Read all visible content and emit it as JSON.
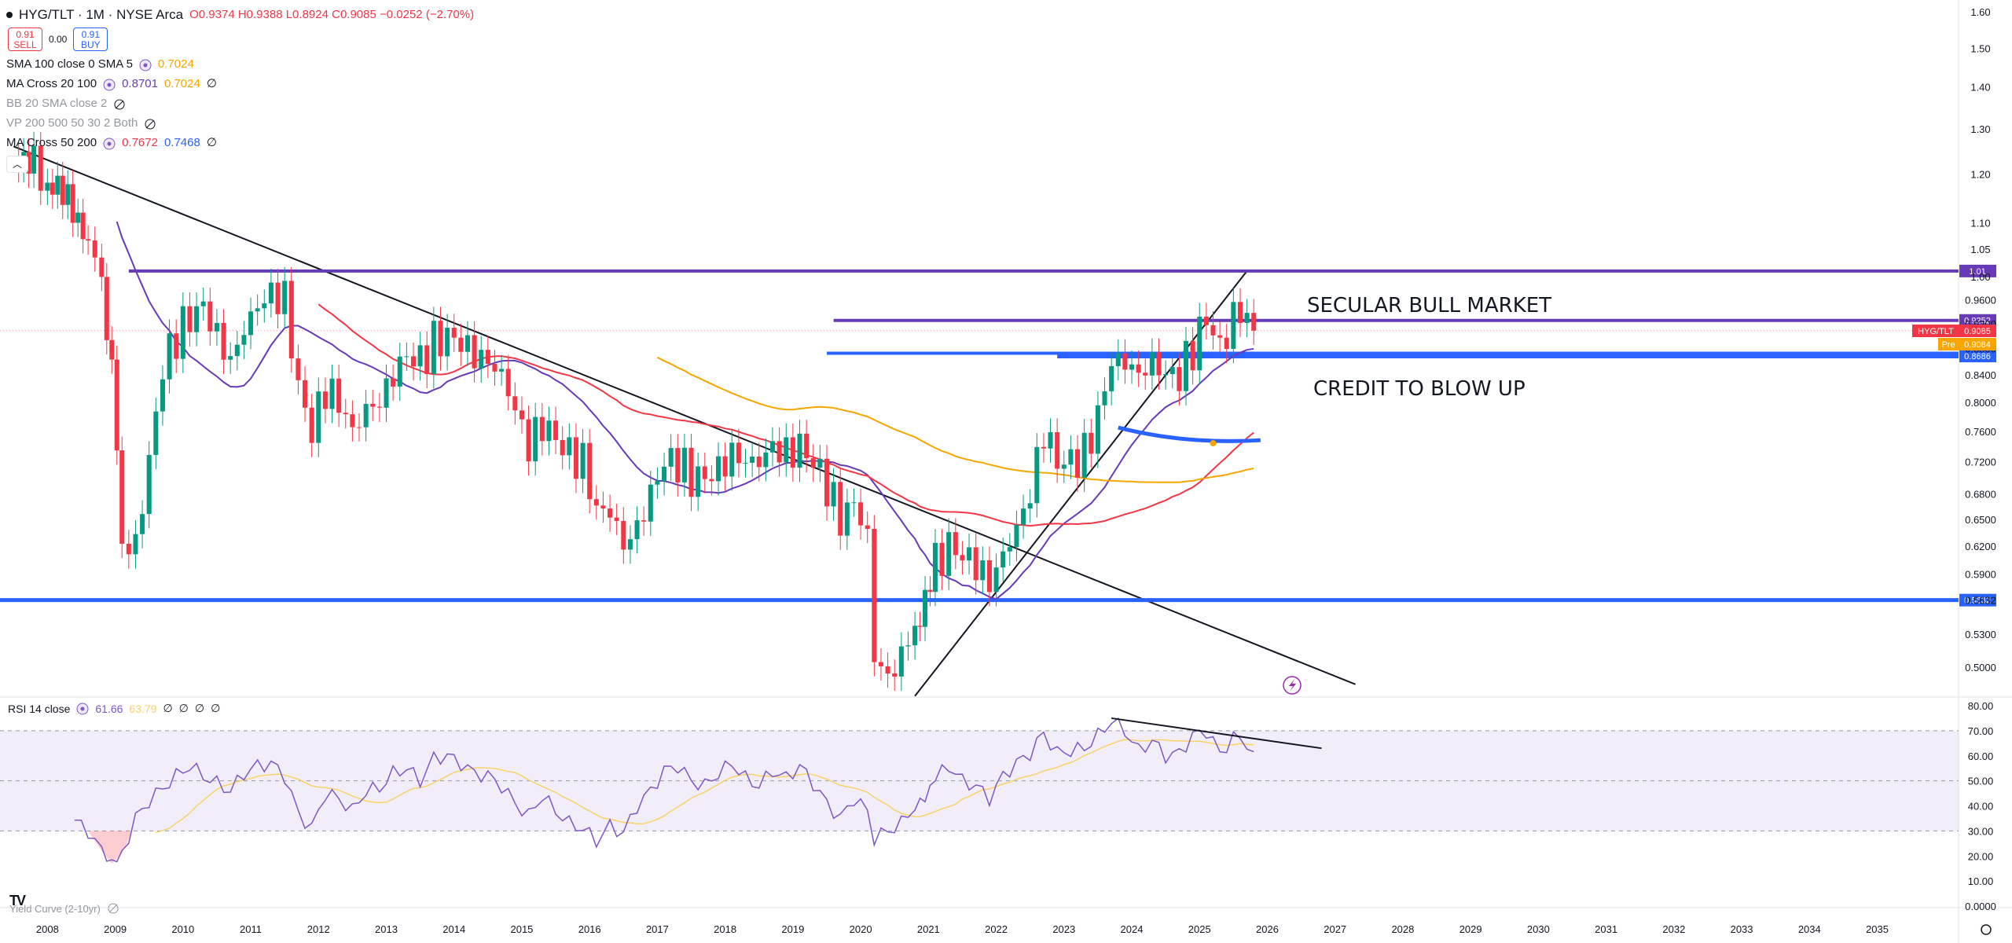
{
  "header": {
    "symbol": "HYG/TLT",
    "interval": "1M",
    "exchange": "NYSE Arca",
    "open": "O0.9374",
    "high": "H0.9388",
    "low": "L0.8924",
    "close": "C0.9085",
    "change": "−0.0252 (−2.70%)"
  },
  "trade": {
    "sell_price": "0.91",
    "sell_label": "SELL",
    "spread": "0.00",
    "buy_price": "0.91",
    "buy_label": "BUY"
  },
  "indicators": [
    {
      "name": "SMA 100 close 0 SMA 5",
      "values": [
        "0.7024"
      ],
      "colors": [
        "#f7a600"
      ]
    },
    {
      "name": "MA Cross 20 100",
      "values": [
        "0.8701",
        "0.7024",
        "∅"
      ],
      "colors": [
        "#673ab7",
        "#f7a600",
        "#131722"
      ]
    },
    {
      "name": "BB 20 SMA close 2",
      "values": [],
      "colors": [],
      "hidden": true
    },
    {
      "name": "VP 200 500 50 30 2 Both",
      "values": [],
      "colors": [],
      "hidden": true
    },
    {
      "name": "MA Cross 50 200",
      "values": [
        "0.7672",
        "0.7468",
        "∅"
      ],
      "colors": [
        "#f23645",
        "#2962ff",
        "#131722"
      ]
    }
  ],
  "rsi_legend": {
    "name": "RSI 14 close",
    "values": [
      "61.66",
      "63.79",
      "∅",
      "∅",
      "∅",
      "∅"
    ]
  },
  "yield_curve_label": "Yield Curve (2-10yr)",
  "annotations": {
    "secular": "SECULAR BULL MARKET",
    "credit": "CREDIT TO BLOW UP"
  },
  "price_labels": {
    "hyg": "HYG/TLT",
    "hyg_value": "0.9085",
    "pre": "Pre",
    "pre_value": "0.9084"
  },
  "colors": {
    "up": "#089981",
    "down": "#f23645",
    "purple": "#673ab7",
    "blue": "#2962ff",
    "orange": "#f7a600",
    "rsi_line": "#7e57c2",
    "rsi_ma": "#f7d26a"
  },
  "chart_data": [
    {
      "type": "candlestick",
      "title": "HYG/TLT · 1M · NYSE Arca",
      "y_scale": "log",
      "ylim": [
        0.47,
        1.6
      ],
      "xlim": [
        2007.3,
        2036.2
      ],
      "x_ticks": [
        "2008",
        "2009",
        "2010",
        "2011",
        "2012",
        "2013",
        "2014",
        "2015",
        "2016",
        "2017",
        "2018",
        "2019",
        "2020",
        "2021",
        "2022",
        "2023",
        "2024",
        "2025",
        "2026",
        "2027",
        "2028",
        "2029",
        "2030",
        "2031",
        "2032",
        "2033",
        "2034",
        "2035"
      ],
      "y_ticks": [
        "1.60",
        "1.50",
        "1.40",
        "1.30",
        "1.20",
        "1.10",
        "1.05",
        "1.00",
        "0.9600",
        "0.9200",
        "0.8800",
        "0.8400",
        "0.8000",
        "0.7600",
        "0.7200",
        "0.6800",
        "0.6500",
        "0.6200",
        "0.5900",
        "0.5632",
        "0.5300",
        "0.5000"
      ],
      "price_close": [
        [
          2007.5,
          1.25
        ],
        [
          2007.8,
          1.22
        ],
        [
          2008.0,
          1.17
        ],
        [
          2008.3,
          1.14
        ],
        [
          2008.6,
          1.08
        ],
        [
          2008.8,
          0.99
        ],
        [
          2008.95,
          0.86
        ],
        [
          2009.1,
          0.62
        ],
        [
          2009.3,
          0.62
        ],
        [
          2009.5,
          0.72
        ],
        [
          2009.7,
          0.85
        ],
        [
          2009.9,
          0.9
        ],
        [
          2010.1,
          0.93
        ],
        [
          2010.3,
          0.95
        ],
        [
          2010.5,
          0.9
        ],
        [
          2010.7,
          0.86
        ],
        [
          2010.9,
          0.91
        ],
        [
          2011.1,
          0.95
        ],
        [
          2011.3,
          0.97
        ],
        [
          2011.5,
          0.96
        ],
        [
          2011.7,
          0.82
        ],
        [
          2011.9,
          0.76
        ],
        [
          2012.1,
          0.82
        ],
        [
          2012.3,
          0.8
        ],
        [
          2012.5,
          0.76
        ],
        [
          2012.7,
          0.79
        ],
        [
          2012.9,
          0.8
        ],
        [
          2013.1,
          0.84
        ],
        [
          2013.3,
          0.87
        ],
        [
          2013.5,
          0.86
        ],
        [
          2013.7,
          0.89
        ],
        [
          2013.9,
          0.9
        ],
        [
          2014.1,
          0.89
        ],
        [
          2014.3,
          0.87
        ],
        [
          2014.5,
          0.86
        ],
        [
          2014.7,
          0.84
        ],
        [
          2014.9,
          0.79
        ],
        [
          2015.1,
          0.74
        ],
        [
          2015.3,
          0.77
        ],
        [
          2015.5,
          0.75
        ],
        [
          2015.7,
          0.73
        ],
        [
          2015.9,
          0.72
        ],
        [
          2016.1,
          0.66
        ],
        [
          2016.3,
          0.66
        ],
        [
          2016.5,
          0.62
        ],
        [
          2016.7,
          0.64
        ],
        [
          2016.9,
          0.68
        ],
        [
          2017.1,
          0.72
        ],
        [
          2017.3,
          0.72
        ],
        [
          2017.5,
          0.7
        ],
        [
          2017.7,
          0.7
        ],
        [
          2017.9,
          0.71
        ],
        [
          2018.1,
          0.73
        ],
        [
          2018.3,
          0.72
        ],
        [
          2018.5,
          0.72
        ],
        [
          2018.7,
          0.74
        ],
        [
          2018.9,
          0.73
        ],
        [
          2019.1,
          0.74
        ],
        [
          2019.3,
          0.72
        ],
        [
          2019.5,
          0.69
        ],
        [
          2019.7,
          0.65
        ],
        [
          2019.9,
          0.67
        ],
        [
          2020.1,
          0.63
        ],
        [
          2020.2,
          0.51
        ],
        [
          2020.4,
          0.49
        ],
        [
          2020.6,
          0.51
        ],
        [
          2020.8,
          0.54
        ],
        [
          2020.95,
          0.56
        ],
        [
          2021.1,
          0.6
        ],
        [
          2021.3,
          0.62
        ],
        [
          2021.5,
          0.61
        ],
        [
          2021.7,
          0.6
        ],
        [
          2021.9,
          0.58
        ],
        [
          2022.1,
          0.61
        ],
        [
          2022.3,
          0.64
        ],
        [
          2022.5,
          0.68
        ],
        [
          2022.7,
          0.76
        ],
        [
          2022.9,
          0.72
        ],
        [
          2023.1,
          0.72
        ],
        [
          2023.3,
          0.73
        ],
        [
          2023.5,
          0.78
        ],
        [
          2023.7,
          0.86
        ],
        [
          2023.9,
          0.86
        ],
        [
          2024.1,
          0.84
        ],
        [
          2024.3,
          0.86
        ],
        [
          2024.5,
          0.84
        ],
        [
          2024.7,
          0.84
        ],
        [
          2024.9,
          0.88
        ],
        [
          2025.1,
          0.93
        ],
        [
          2025.3,
          0.88
        ],
        [
          2025.5,
          0.93
        ],
        [
          2025.6,
          0.94
        ],
        [
          2025.7,
          0.93
        ],
        [
          2025.8,
          0.9085
        ]
      ],
      "horizontal_levels": [
        1.01,
        0.9252,
        0.8729,
        0.8686,
        0.5632
      ],
      "series": [
        {
          "name": "SMA 100 close 0 SMA 5",
          "last": 0.7024
        },
        {
          "name": "MA Cross 20 100",
          "last": 0.8701
        },
        {
          "name": "MA Cross 50 200",
          "last": 0.7672
        }
      ]
    },
    {
      "type": "line",
      "title": "RSI 14 close",
      "ylim": [
        0,
        80
      ],
      "y_ticks": [
        "80.00",
        "70.00",
        "60.00",
        "50.00",
        "40.00",
        "30.00",
        "20.00",
        "10.00",
        "0.0000"
      ],
      "band": [
        30,
        70
      ],
      "rsi": [
        [
          2008.4,
          34
        ],
        [
          2008.6,
          30
        ],
        [
          2008.8,
          22
        ],
        [
          2008.95,
          17
        ],
        [
          2009.1,
          21
        ],
        [
          2009.3,
          35
        ],
        [
          2009.5,
          42
        ],
        [
          2009.7,
          47
        ],
        [
          2009.9,
          52
        ],
        [
          2010.1,
          56
        ],
        [
          2010.3,
          52
        ],
        [
          2010.5,
          49
        ],
        [
          2010.7,
          46
        ],
        [
          2010.9,
          53
        ],
        [
          2011.1,
          56
        ],
        [
          2011.3,
          57
        ],
        [
          2011.5,
          52
        ],
        [
          2011.7,
          37
        ],
        [
          2011.9,
          31
        ],
        [
          2012.1,
          45
        ],
        [
          2012.3,
          43
        ],
        [
          2012.5,
          38
        ],
        [
          2012.7,
          46
        ],
        [
          2012.9,
          47
        ],
        [
          2013.1,
          53
        ],
        [
          2013.3,
          55
        ],
        [
          2013.5,
          50
        ],
        [
          2013.7,
          59
        ],
        [
          2013.9,
          60
        ],
        [
          2014.1,
          57
        ],
        [
          2014.3,
          53
        ],
        [
          2014.5,
          52
        ],
        [
          2014.7,
          48
        ],
        [
          2014.9,
          41
        ],
        [
          2015.1,
          36
        ],
        [
          2015.3,
          44
        ],
        [
          2015.5,
          38
        ],
        [
          2015.7,
          33
        ],
        [
          2015.9,
          31
        ],
        [
          2016.1,
          26
        ],
        [
          2016.3,
          32
        ],
        [
          2016.5,
          29
        ],
        [
          2016.7,
          40
        ],
        [
          2016.9,
          46
        ],
        [
          2017.1,
          54
        ],
        [
          2017.3,
          56
        ],
        [
          2017.5,
          50
        ],
        [
          2017.7,
          48
        ],
        [
          2017.9,
          53
        ],
        [
          2018.1,
          57
        ],
        [
          2018.3,
          51
        ],
        [
          2018.5,
          48
        ],
        [
          2018.7,
          54
        ],
        [
          2018.9,
          51
        ],
        [
          2019.1,
          56
        ],
        [
          2019.3,
          49
        ],
        [
          2019.5,
          41
        ],
        [
          2019.7,
          35
        ],
        [
          2019.9,
          43
        ],
        [
          2020.1,
          38
        ],
        [
          2020.2,
          27
        ],
        [
          2020.4,
          30
        ],
        [
          2020.6,
          33
        ],
        [
          2020.8,
          40
        ],
        [
          2020.95,
          43
        ],
        [
          2021.1,
          51
        ],
        [
          2021.3,
          56
        ],
        [
          2021.5,
          50
        ],
        [
          2021.7,
          48
        ],
        [
          2021.9,
          43
        ],
        [
          2022.1,
          52
        ],
        [
          2022.3,
          57
        ],
        [
          2022.5,
          61
        ],
        [
          2022.7,
          69
        ],
        [
          2022.9,
          61
        ],
        [
          2023.1,
          62
        ],
        [
          2023.3,
          63
        ],
        [
          2023.5,
          68
        ],
        [
          2023.7,
          74
        ],
        [
          2023.9,
          70
        ],
        [
          2024.1,
          62
        ],
        [
          2024.3,
          66
        ],
        [
          2024.5,
          60
        ],
        [
          2024.7,
          61
        ],
        [
          2024.9,
          68
        ],
        [
          2025.1,
          70
        ],
        [
          2025.3,
          61
        ],
        [
          2025.5,
          67
        ],
        [
          2025.6,
          67
        ],
        [
          2025.7,
          65
        ],
        [
          2025.8,
          61.66
        ]
      ],
      "rsi_ma_last": 63.79
    }
  ]
}
